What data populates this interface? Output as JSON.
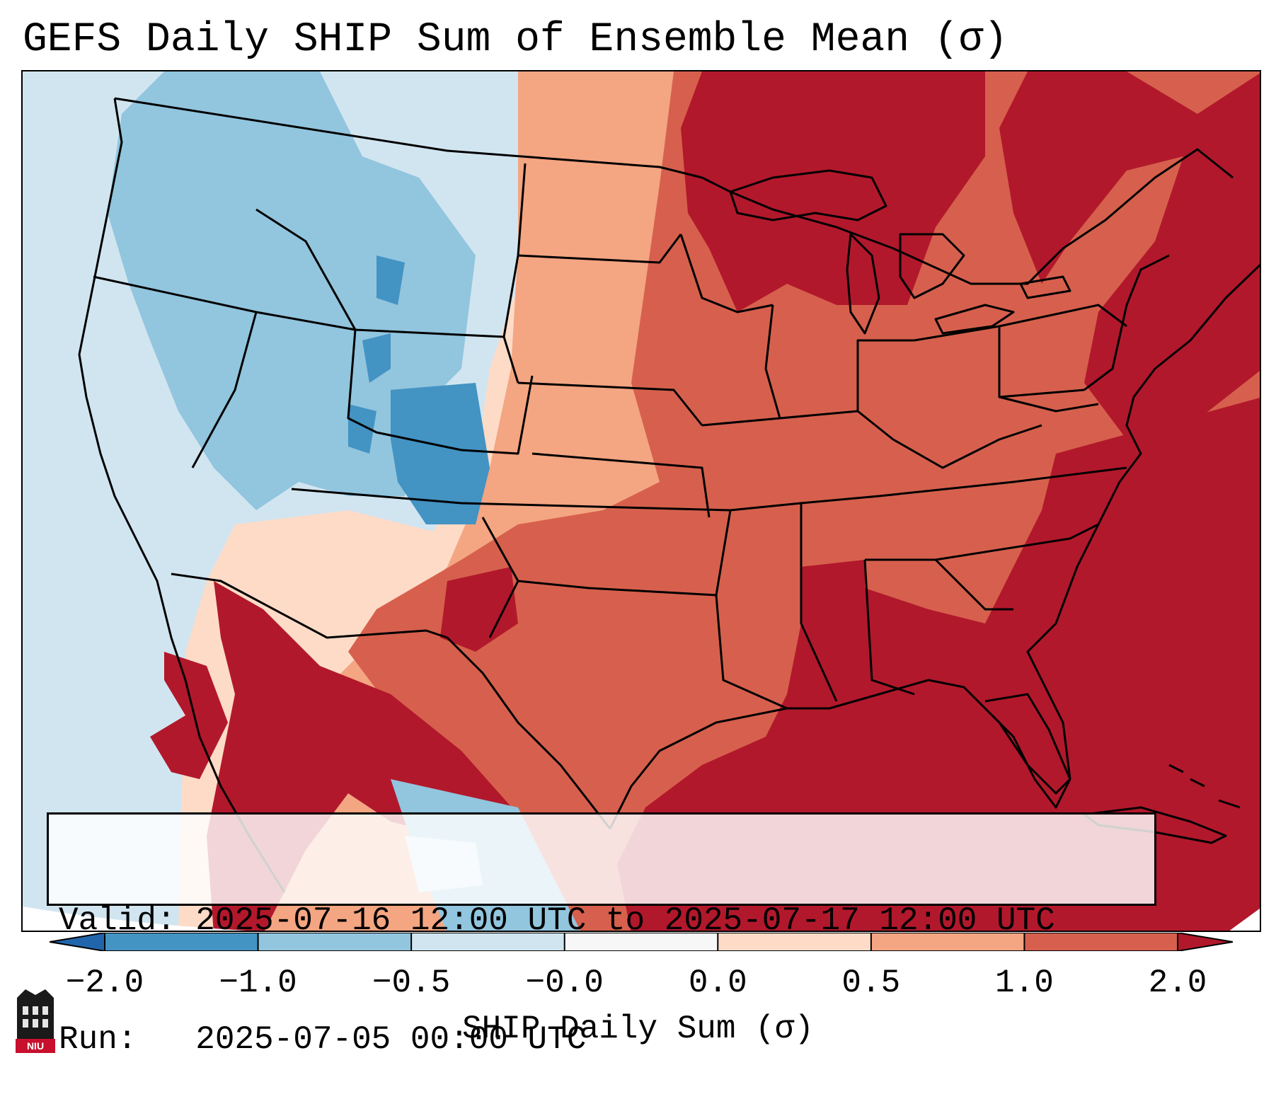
{
  "title": "GEFS Daily SHIP Sum of Ensemble Mean (σ)",
  "valid": {
    "line1": "Valid: 2025-07-16 12:00 UTC to 2025-07-17 12:00 UTC",
    "line2": "Run:   2025-07-05 00:00 UTC"
  },
  "colorbar": {
    "label": "SHIP Daily Sum (σ)",
    "ticks": [
      "−2.0",
      "−1.0",
      "−0.5",
      "−0.0",
      "0.0",
      "0.5",
      "1.0",
      "2.0"
    ],
    "bins": [
      {
        "range": "< -2.0",
        "color": "#2166ac"
      },
      {
        "range": "-2.0 to -1.0",
        "color": "#4393c3"
      },
      {
        "range": "-1.0 to -0.5",
        "color": "#92c5de"
      },
      {
        "range": "-0.5 to -0.0",
        "color": "#d1e5f0"
      },
      {
        "range": "-0.0 to 0.0",
        "color": "#f7f7f7"
      },
      {
        "range": "0.0 to 0.5",
        "color": "#fddbc7"
      },
      {
        "range": "0.5 to 1.0",
        "color": "#f4a582"
      },
      {
        "range": "1.0 to 2.0",
        "color": "#d6604d"
      },
      {
        "range": "> 2.0",
        "color": "#b2182b"
      }
    ]
  },
  "logo": {
    "text": "NIU",
    "icon": "niu-logo-icon"
  },
  "colors": {
    "strong_negative": "#2166ac",
    "strong_positive": "#b2182b",
    "background_ocean_west": "#d1e5f0"
  }
}
